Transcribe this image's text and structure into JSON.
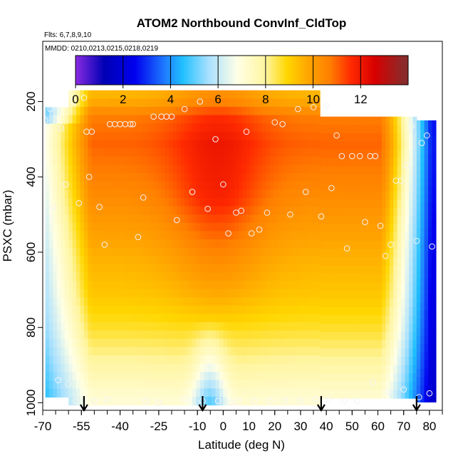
{
  "chart_data": {
    "type": "heatmap",
    "title": "ATOM2 Northbound ConvInf_CldTop",
    "annotations": {
      "flights": "Flts: 6,7,8,9,10",
      "dates": "MMDD: 0210,0213,0215,0218,0219"
    },
    "xlabel": "Latitude (deg N)",
    "ylabel": "PSXC (mbar)",
    "xlim": [
      -70,
      85
    ],
    "ylim": [
      1020,
      40
    ],
    "x_ticks": [
      -70,
      -55,
      -40,
      -25,
      -10,
      0,
      10,
      20,
      30,
      40,
      50,
      60,
      70,
      80
    ],
    "x_tick_labels": [
      "-70",
      "-55",
      "-40",
      "-25",
      "-10",
      "0",
      "10",
      "20",
      "30",
      "40",
      "50",
      "60",
      "70",
      "80"
    ],
    "x_minor_step": 5,
    "y_ticks": [
      200,
      400,
      600,
      800,
      1000
    ],
    "y_tick_labels": [
      "200",
      "400",
      "600",
      "800",
      "1000"
    ],
    "colorbar": {
      "range": [
        0,
        14
      ],
      "ticks": [
        0,
        2,
        4,
        6,
        8,
        10,
        12
      ],
      "tick_labels": [
        "0",
        "2",
        "4",
        "6",
        "8",
        "10",
        "12"
      ],
      "colors": [
        "#8a2be2",
        "#0000b4",
        "#0000ee",
        "#1f7fff",
        "#1fbfff",
        "#a8e0ff",
        "#ffffe6",
        "#fff5a0",
        "#ffd700",
        "#ffa500",
        "#ff7f00",
        "#ff2a00",
        "#d70000",
        "#8b2a2a"
      ],
      "color_stops": [
        0,
        1.2,
        2.5,
        3.8,
        4.5,
        5.6,
        6.8,
        8.0,
        8.9,
        9.8,
        10.7,
        11.6,
        12.6,
        13.8
      ]
    },
    "field_model": {
      "base_profile": [
        [
          180,
          9.5
        ],
        [
          230,
          10.7
        ],
        [
          300,
          11.0
        ],
        [
          400,
          10.6
        ],
        [
          500,
          10.1
        ],
        [
          600,
          9.6
        ],
        [
          700,
          9.2
        ],
        [
          800,
          8.6
        ],
        [
          900,
          7.8
        ],
        [
          980,
          7.1
        ]
      ],
      "tropical_boost": {
        "center_lat": -3,
        "width_deg": 18,
        "pressure_weight": [
          [
            200,
            0.6
          ],
          [
            450,
            1.0
          ],
          [
            650,
            0.5
          ],
          [
            800,
            0.1
          ]
        ]
      },
      "south_edge_fade_lat": [
        -70,
        -52
      ],
      "north_edge_fade_lat": [
        60,
        80
      ],
      "boundary_layer_dip_lat": -6,
      "data_extent_lat": [
        -69,
        82
      ]
    },
    "markers": {
      "name": "aircraft profile locations (open circles)",
      "lat_deg": [
        -69,
        -67,
        -66,
        -63,
        -61,
        -58,
        -56,
        -54,
        -53,
        -52,
        -51,
        -48,
        -46,
        -44,
        -42,
        -40,
        -38,
        -36,
        -35,
        -33,
        -31,
        -27,
        -24,
        -22,
        -20,
        -18,
        -15,
        -12,
        -9,
        -6,
        -3,
        0,
        2,
        5,
        7,
        9,
        11,
        14,
        17,
        20,
        23,
        26,
        29,
        32,
        35,
        38,
        40,
        42,
        44,
        46,
        48,
        50,
        53,
        55,
        57,
        59,
        61,
        63,
        65,
        67,
        69,
        71,
        73,
        75,
        77,
        79,
        81,
        -64,
        -60,
        -57,
        -50,
        -45,
        -30,
        -25,
        -15,
        -8,
        -2,
        3,
        6,
        12,
        18,
        24,
        30,
        36,
        41,
        47,
        52,
        58,
        64,
        70,
        76,
        80
      ],
      "psxc_mbar": [
        250,
        220,
        480,
        270,
        420,
        200,
        470,
        190,
        280,
        400,
        280,
        480,
        580,
        260,
        260,
        260,
        260,
        260,
        260,
        560,
        455,
        240,
        240,
        240,
        240,
        515,
        220,
        440,
        200,
        485,
        300,
        420,
        550,
        495,
        490,
        280,
        550,
        540,
        495,
        255,
        260,
        500,
        220,
        440,
        215,
        505,
        210,
        430,
        290,
        345,
        590,
        345,
        345,
        520,
        345,
        345,
        530,
        610,
        580,
        410,
        410,
        370,
        265,
        570,
        310,
        290,
        585,
        940,
        950,
        995,
        995,
        990,
        995,
        1000,
        990,
        995,
        995,
        1000,
        995,
        995,
        995,
        995,
        995,
        990,
        990,
        995,
        995,
        945,
        970,
        965,
        985,
        975
      ]
    },
    "arrows_lat_deg": [
      -54,
      -8,
      38,
      75
    ],
    "arrow_label": "flight turnaround points"
  }
}
